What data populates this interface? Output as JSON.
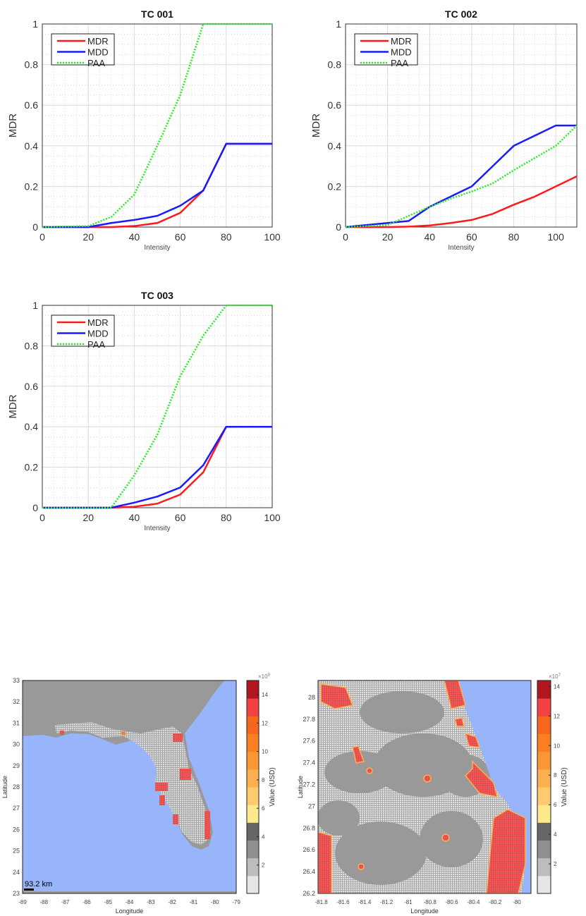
{
  "chart_data": [
    {
      "type": "line",
      "title": "TC 001",
      "xlabel": "Intensity",
      "ylabel": "MDR",
      "xlim": [
        0,
        100
      ],
      "ylim": [
        0,
        1
      ],
      "xticks": [
        "0",
        "20",
        "40",
        "60",
        "80",
        "100"
      ],
      "yticks": [
        "0",
        "0.2",
        "0.4",
        "0.6",
        "0.8",
        "1"
      ],
      "grid": true,
      "legend_position": "top-left",
      "series": [
        {
          "name": "MDR",
          "color": "#ff1a1a",
          "style": "solid",
          "x": [
            0,
            20,
            30,
            40,
            50,
            60,
            70,
            80,
            100
          ],
          "y": [
            0,
            0,
            0,
            0.005,
            0.02,
            0.07,
            0.18,
            0.41,
            0.41
          ]
        },
        {
          "name": "MDD",
          "color": "#1a1aff",
          "style": "solid",
          "x": [
            0,
            20,
            30,
            40,
            50,
            60,
            70,
            80,
            100
          ],
          "y": [
            0,
            0,
            0.02,
            0.035,
            0.055,
            0.105,
            0.18,
            0.41,
            0.41
          ]
        },
        {
          "name": "PAA",
          "color": "#22ee22",
          "style": "dotted",
          "x": [
            0,
            20,
            30,
            40,
            50,
            60,
            70,
            80,
            100
          ],
          "y": [
            0,
            0.005,
            0.05,
            0.16,
            0.4,
            0.65,
            1,
            1,
            1
          ]
        }
      ]
    },
    {
      "type": "line",
      "title": "TC 002",
      "xlabel": "Intensity",
      "ylabel": "MDR",
      "xlim": [
        0,
        110
      ],
      "ylim": [
        0,
        1
      ],
      "xticks": [
        "0",
        "20",
        "40",
        "60",
        "80",
        "100"
      ],
      "yticks": [
        "0",
        "0.2",
        "0.4",
        "0.6",
        "0.8",
        "1"
      ],
      "grid": true,
      "legend_position": "top-left",
      "series": [
        {
          "name": "MDR",
          "color": "#ff1a1a",
          "style": "solid",
          "x": [
            0,
            20,
            30,
            40,
            50,
            60,
            70,
            80,
            90,
            100,
            110
          ],
          "y": [
            0,
            0,
            0.002,
            0.008,
            0.02,
            0.035,
            0.065,
            0.11,
            0.15,
            0.2,
            0.25
          ]
        },
        {
          "name": "MDD",
          "color": "#1a1aff",
          "style": "solid",
          "x": [
            0,
            20,
            30,
            40,
            50,
            60,
            70,
            80,
            90,
            100,
            110
          ],
          "y": [
            0,
            0.02,
            0.03,
            0.1,
            0.15,
            0.2,
            0.3,
            0.4,
            0.45,
            0.5,
            0.5
          ]
        },
        {
          "name": "PAA",
          "color": "#22ee22",
          "style": "dotted",
          "x": [
            0,
            20,
            30,
            40,
            50,
            60,
            70,
            80,
            90,
            100,
            110
          ],
          "y": [
            0,
            0.01,
            0.055,
            0.1,
            0.14,
            0.175,
            0.215,
            0.28,
            0.34,
            0.4,
            0.5
          ]
        }
      ]
    },
    {
      "type": "line",
      "title": "TC 003",
      "xlabel": "Intensity",
      "ylabel": "MDR",
      "xlim": [
        0,
        100
      ],
      "ylim": [
        0,
        1
      ],
      "xticks": [
        "0",
        "20",
        "40",
        "60",
        "80",
        "100"
      ],
      "yticks": [
        "0",
        "0.2",
        "0.4",
        "0.6",
        "0.8",
        "1"
      ],
      "grid": true,
      "legend_position": "top-left",
      "series": [
        {
          "name": "MDR",
          "color": "#ff1a1a",
          "style": "solid",
          "x": [
            0,
            30,
            40,
            50,
            60,
            70,
            80,
            100
          ],
          "y": [
            0,
            0,
            0.005,
            0.02,
            0.065,
            0.175,
            0.4,
            0.4
          ]
        },
        {
          "name": "MDD",
          "color": "#1a1aff",
          "style": "solid",
          "x": [
            0,
            30,
            40,
            50,
            60,
            70,
            80,
            100
          ],
          "y": [
            0,
            0,
            0.025,
            0.055,
            0.1,
            0.21,
            0.4,
            0.4
          ]
        },
        {
          "name": "PAA",
          "color": "#22ee22",
          "style": "dotted",
          "x": [
            0,
            30,
            40,
            50,
            60,
            70,
            80,
            100
          ],
          "y": [
            0,
            0,
            0.16,
            0.36,
            0.65,
            0.85,
            1,
            1
          ]
        }
      ]
    },
    {
      "type": "heatmap",
      "xlabel": "Longitude",
      "ylabel": "Latitude",
      "xlim": [
        -89,
        -79
      ],
      "ylim": [
        23,
        33
      ],
      "xticks": [
        "-89",
        "-88",
        "-87",
        "-86",
        "-85",
        "-84",
        "-83",
        "-82",
        "-81",
        "-80",
        "-79"
      ],
      "yticks": [
        "23",
        "24",
        "25",
        "26",
        "27",
        "28",
        "29",
        "30",
        "31",
        "32",
        "33"
      ],
      "scale_label": "93.2 km",
      "colorbar": {
        "label": "Value (USD)",
        "exponent_base": "×10",
        "exponent": "9",
        "ticks": [
          "2",
          "4",
          "6",
          "8",
          "10",
          "12",
          "14"
        ],
        "range": [
          0,
          15
        ]
      }
    },
    {
      "type": "heatmap",
      "xlabel": "Longitude",
      "ylabel": "Latitude",
      "xlim": [
        -81.83,
        -79.87
      ],
      "ylim": [
        26.2,
        28.155
      ],
      "xticks": [
        "-81.8",
        "-81.6",
        "-81.4",
        "-81.2",
        "-81",
        "-80.8",
        "-80.6",
        "-80.4",
        "-80.2",
        "-80"
      ],
      "yticks": [
        "26.2",
        "26.4",
        "26.6",
        "26.8",
        "27",
        "27.2",
        "27.4",
        "27.6",
        "27.8",
        "28"
      ],
      "colorbar": {
        "label": "Value (USD)",
        "exponent_base": "×10",
        "exponent": "7",
        "ticks": [
          "2",
          "4",
          "6",
          "8",
          "10",
          "12",
          "14"
        ],
        "range": [
          0,
          14.4
        ]
      }
    }
  ],
  "colors": {
    "ocean": "#98b4fb",
    "land": "#999999",
    "colormap": [
      "#e6e6e6",
      "#bdbdbd",
      "#8f8f8f",
      "#666666",
      "#fde98c",
      "#fdcb6d",
      "#fcb050",
      "#fa9634",
      "#f97f21",
      "#f6661c",
      "#f44141",
      "#b0171f"
    ]
  }
}
